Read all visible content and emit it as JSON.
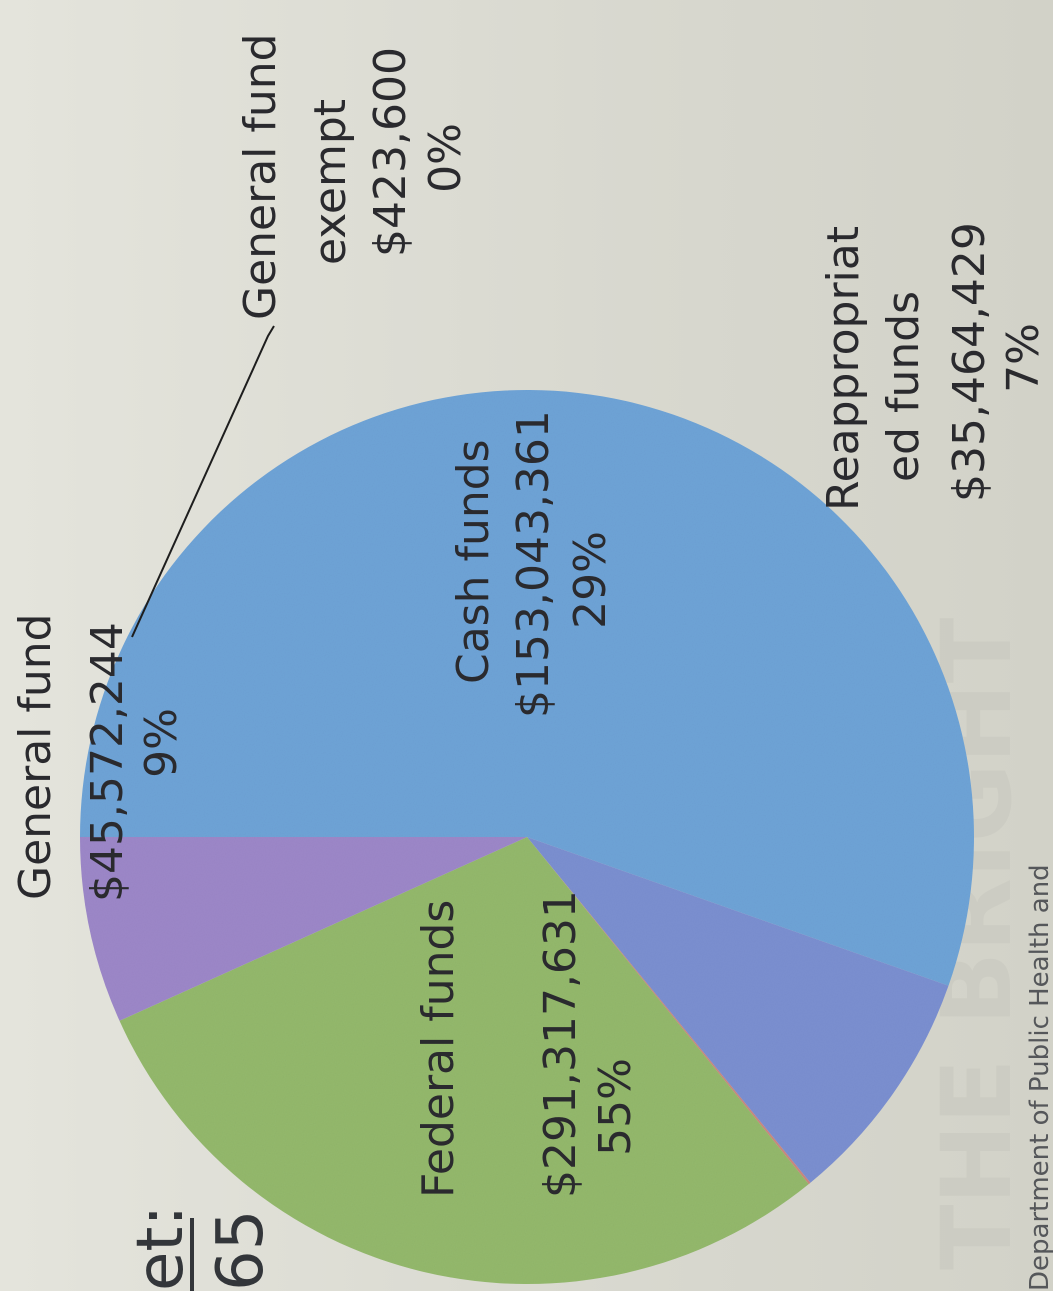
{
  "colors": {
    "federal": "#6ea3d6",
    "general": "#7b8fd0",
    "general_exempt": "#c9877f",
    "cash": "#93b86c",
    "reappropriated": "#9c87c8"
  },
  "title_fragment": "et:",
  "title_number_fragment": "65",
  "watermark_fragment": "THE BRIGHT",
  "footer_text": "Department of Public Health and",
  "chart_data": {
    "type": "pie",
    "slices": [
      {
        "label": "Federal funds",
        "amount": "$291,317,631",
        "percent": "55%",
        "value": 291317631,
        "color_key": "federal"
      },
      {
        "label": "General fund",
        "amount": "$45,572,244",
        "percent": "9%",
        "value": 45572244,
        "color_key": "general"
      },
      {
        "label": "General fund exempt",
        "amount": "$423,600",
        "percent": "0%",
        "value": 423600,
        "color_key": "general_exempt"
      },
      {
        "label": "Cash funds",
        "amount": "$153,043,361",
        "percent": "29%",
        "value": 153043361,
        "color_key": "cash"
      },
      {
        "label": "Reappropriated funds",
        "amount": "$35,464,429",
        "percent": "7%",
        "value": 35464429,
        "color_key": "reappropriated"
      }
    ],
    "label_lines": {
      "general_fund_exempt": [
        "General fund",
        "exempt",
        "$423,600",
        "0%"
      ],
      "reappropriated": [
        "Reappropriat",
        "ed  funds",
        "$35,464,429",
        "7%"
      ]
    }
  }
}
